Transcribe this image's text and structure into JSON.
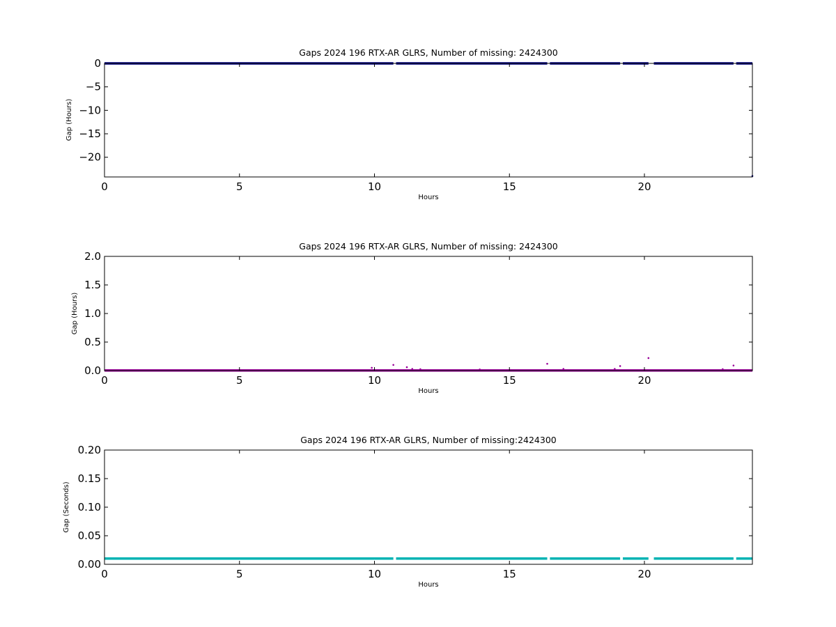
{
  "chart_data": [
    {
      "type": "scatter",
      "title": "Gaps 2024 196 RTX-AR  GLRS, Number of missing: 2424300",
      "xlabel": "Hours",
      "ylabel": "Gap (Hours)",
      "xlim": [
        0,
        24
      ],
      "ylim": [
        -24.2,
        0
      ],
      "xticks": [
        0,
        5,
        10,
        15,
        20
      ],
      "xtick_labels": [
        "0",
        "5",
        "10",
        "15",
        "20"
      ],
      "yticks": [
        0,
        -5,
        -10,
        -15,
        -20
      ],
      "ytick_labels": [
        "0",
        "−5",
        "−10",
        "−15",
        "−20"
      ],
      "color": "#000080",
      "series": [
        {
          "segments": [
            [
              0,
              10.7
            ],
            [
              10.8,
              16.4
            ],
            [
              16.5,
              19.1
            ],
            [
              19.2,
              20.15
            ],
            [
              20.35,
              23.3
            ],
            [
              23.4,
              24
            ]
          ],
          "value": 0,
          "outliers": [
            {
              "x": 24,
              "y": -24
            }
          ]
        }
      ]
    },
    {
      "type": "scatter",
      "title": "Gaps 2024 196 RTX-AR  GLRS, Number of missing: 2424300",
      "xlabel": "Hours",
      "ylabel": "Gap (Hours)",
      "xlim": [
        0,
        24
      ],
      "ylim": [
        0,
        2
      ],
      "xticks": [
        0,
        5,
        10,
        15,
        20
      ],
      "xtick_labels": [
        "0",
        "5",
        "10",
        "15",
        "20"
      ],
      "yticks": [
        0,
        0.5,
        1.0,
        1.5,
        2.0
      ],
      "ytick_labels": [
        "0.0",
        "0.5",
        "1.0",
        "1.5",
        "2.0"
      ],
      "color": "#990099",
      "series": [
        {
          "segments": [
            [
              0,
              24
            ]
          ],
          "value": 0.003,
          "outliers": [
            {
              "x": 9.9,
              "y": 0.05
            },
            {
              "x": 10.7,
              "y": 0.1
            },
            {
              "x": 11.2,
              "y": 0.06
            },
            {
              "x": 11.4,
              "y": 0.03
            },
            {
              "x": 11.7,
              "y": 0.025
            },
            {
              "x": 13.9,
              "y": 0.02
            },
            {
              "x": 16.4,
              "y": 0.12
            },
            {
              "x": 17.0,
              "y": 0.03
            },
            {
              "x": 18.9,
              "y": 0.03
            },
            {
              "x": 19.1,
              "y": 0.08
            },
            {
              "x": 20.15,
              "y": 0.22
            },
            {
              "x": 22.9,
              "y": 0.025
            },
            {
              "x": 23.3,
              "y": 0.09
            }
          ]
        }
      ]
    },
    {
      "type": "scatter",
      "title": "Gaps 2024 196 RTX-AR  GLRS, Number of missing:2424300",
      "xlabel": "Hours",
      "ylabel": "Gap (Seconds)",
      "xlim": [
        0,
        24
      ],
      "ylim": [
        0,
        0.2
      ],
      "xticks": [
        0,
        5,
        10,
        15,
        20
      ],
      "xtick_labels": [
        "0",
        "5",
        "10",
        "15",
        "20"
      ],
      "yticks": [
        0,
        0.05,
        0.1,
        0.15,
        0.2
      ],
      "ytick_labels": [
        "0.00",
        "0.05",
        "0.10",
        "0.15",
        "0.20"
      ],
      "color": "#00b3b3",
      "series": [
        {
          "segments": [
            [
              0,
              10.7
            ],
            [
              10.8,
              16.4
            ],
            [
              16.5,
              19.1
            ],
            [
              19.2,
              20.15
            ],
            [
              20.35,
              23.3
            ],
            [
              23.4,
              24
            ]
          ],
          "value": 0.01,
          "outliers": []
        }
      ]
    }
  ]
}
